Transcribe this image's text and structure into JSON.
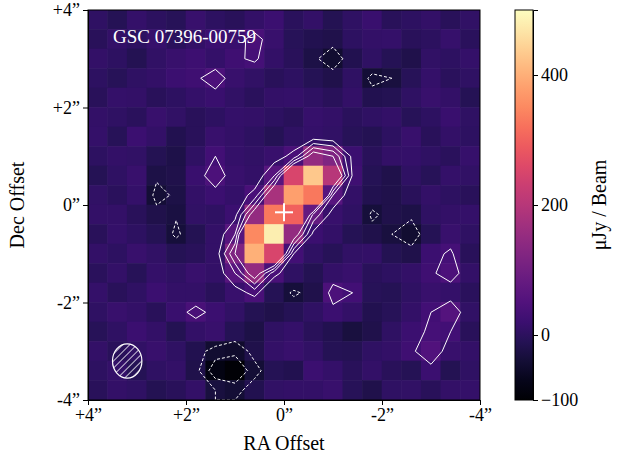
{
  "chart_data": {
    "type": "heatmap",
    "title": "GSC 07396-00759",
    "x_label": "RA Offset",
    "y_label": "Dec Offset",
    "xlim": [
      4,
      -4
    ],
    "ylim": [
      -4,
      4
    ],
    "xticks": [
      {
        "value": 4,
        "label": "+4”"
      },
      {
        "value": 2,
        "label": "+2”"
      },
      {
        "value": 0,
        "label": "0”"
      },
      {
        "value": -2,
        "label": "-2”"
      },
      {
        "value": -4,
        "label": "-4”"
      }
    ],
    "yticks": [
      {
        "value": 4,
        "label": "+4”"
      },
      {
        "value": 2,
        "label": "+2”"
      },
      {
        "value": 0,
        "label": "0”"
      },
      {
        "value": -2,
        "label": "-2”"
      },
      {
        "value": -4,
        "label": "-4”"
      }
    ],
    "color": "magma",
    "cells": {
      "x": [
        3.8,
        3.4,
        3.0,
        2.6,
        2.2,
        1.8,
        1.4,
        1.0,
        0.6,
        0.2,
        -0.2,
        -0.6,
        -1.0,
        -1.4,
        -1.8,
        -2.2,
        -2.6,
        -3.0,
        -3.4,
        -3.8
      ],
      "y": [
        3.8,
        3.4,
        3.0,
        2.6,
        2.2,
        1.8,
        1.4,
        1.0,
        0.6,
        0.2,
        -0.2,
        -0.6,
        -1.0,
        -1.4,
        -1.8,
        -2.2,
        -2.6,
        -3.0,
        -3.4,
        -3.8
      ],
      "values": [
        [
          5,
          -10,
          12,
          0,
          -8,
          15,
          3,
          -5,
          10,
          20,
          -3,
          8,
          -12,
          5,
          18,
          -6,
          2,
          10,
          -4,
          7
        ],
        [
          -6,
          8,
          3,
          14,
          -2,
          10,
          20,
          18,
          40,
          15,
          -8,
          -15,
          -20,
          3,
          9,
          12,
          -5,
          0,
          14,
          -3
        ],
        [
          10,
          2,
          -12,
          6,
          15,
          22,
          12,
          25,
          35,
          8,
          -5,
          -25,
          -45,
          -15,
          4,
          -10,
          -20,
          6,
          3,
          12
        ],
        [
          3,
          -7,
          5,
          10,
          20,
          25,
          45,
          15,
          6,
          -4,
          2,
          -10,
          -18,
          5,
          -40,
          -30,
          -8,
          12,
          -2,
          5
        ],
        [
          -4,
          12,
          8,
          -6,
          3,
          12,
          18,
          6,
          -3,
          10,
          12,
          5,
          -5,
          8,
          -15,
          -12,
          4,
          15,
          9,
          -10
        ],
        [
          8,
          5,
          -3,
          15,
          6,
          -5,
          2,
          12,
          10,
          3,
          -6,
          14,
          8,
          -2,
          5,
          10,
          -8,
          3,
          18,
          4
        ],
        [
          12,
          -8,
          20,
          10,
          -15,
          -5,
          15,
          8,
          2,
          -10,
          5,
          12,
          6,
          -8,
          -12,
          3,
          15,
          -6,
          10,
          2
        ],
        [
          2,
          10,
          6,
          -12,
          -22,
          5,
          30,
          12,
          6,
          15,
          40,
          150,
          120,
          20,
          -5,
          8,
          12,
          4,
          -3,
          14
        ],
        [
          -10,
          5,
          15,
          -25,
          -20,
          18,
          45,
          15,
          8,
          60,
          250,
          430,
          200,
          25,
          -10,
          -20,
          5,
          -8,
          12,
          6
        ],
        [
          6,
          -3,
          12,
          -40,
          -25,
          10,
          20,
          12,
          40,
          180,
          380,
          330,
          60,
          8,
          -15,
          -18,
          -5,
          10,
          3,
          -6
        ],
        [
          10,
          8,
          -5,
          -20,
          -28,
          6,
          4,
          20,
          150,
          330,
          300,
          80,
          15,
          5,
          -35,
          -20,
          -25,
          4,
          8,
          12
        ],
        [
          -5,
          12,
          3,
          -10,
          -35,
          -12,
          8,
          60,
          350,
          480,
          150,
          20,
          8,
          -10,
          -20,
          -30,
          -45,
          -10,
          15,
          5
        ],
        [
          8,
          3,
          15,
          6,
          -10,
          -5,
          10,
          120,
          400,
          250,
          30,
          5,
          -8,
          6,
          10,
          -12,
          -20,
          20,
          35,
          -4
        ],
        [
          -3,
          10,
          -8,
          12,
          5,
          15,
          8,
          60,
          150,
          40,
          5,
          -12,
          10,
          15,
          -5,
          3,
          8,
          25,
          45,
          10
        ],
        [
          12,
          -6,
          5,
          20,
          10,
          8,
          -5,
          15,
          40,
          -10,
          -35,
          -20,
          45,
          30,
          -8,
          -10,
          5,
          15,
          12,
          -2
        ],
        [
          4,
          15,
          8,
          -5,
          18,
          40,
          20,
          6,
          -12,
          -18,
          -10,
          5,
          20,
          8,
          -15,
          -8,
          10,
          30,
          55,
          6
        ],
        [
          -8,
          5,
          20,
          10,
          -12,
          8,
          15,
          -10,
          -25,
          5,
          12,
          -6,
          -15,
          -30,
          -20,
          4,
          20,
          35,
          30,
          -5
        ],
        [
          10,
          -4,
          6,
          15,
          5,
          -15,
          -45,
          -50,
          -20,
          8,
          15,
          6,
          -10,
          -12,
          5,
          10,
          25,
          50,
          15,
          8
        ],
        [
          3,
          12,
          -10,
          5,
          8,
          -20,
          -80,
          -95,
          -40,
          -10,
          -15,
          20,
          12,
          -5,
          8,
          -6,
          -10,
          20,
          -12,
          4
        ],
        [
          -6,
          8,
          5,
          -12,
          -5,
          10,
          -30,
          -40,
          -15,
          6,
          10,
          8,
          15,
          -8,
          -20,
          4,
          6,
          -5,
          10,
          12
        ]
      ]
    },
    "contour_levels": [
      -60,
      -30,
      30,
      60,
      90,
      120
    ],
    "colorbar": {
      "label": "μJy / Beam",
      "range": [
        -100,
        500
      ],
      "ticks": [
        {
          "value": -100,
          "label": "−100"
        },
        0,
        200,
        400
      ]
    },
    "star": {
      "x": 0,
      "y": -0.15,
      "marker": "cross"
    },
    "beam": {
      "x": 3.2,
      "y": -3.2,
      "major": 0.7,
      "minor": 0.6
    }
  }
}
